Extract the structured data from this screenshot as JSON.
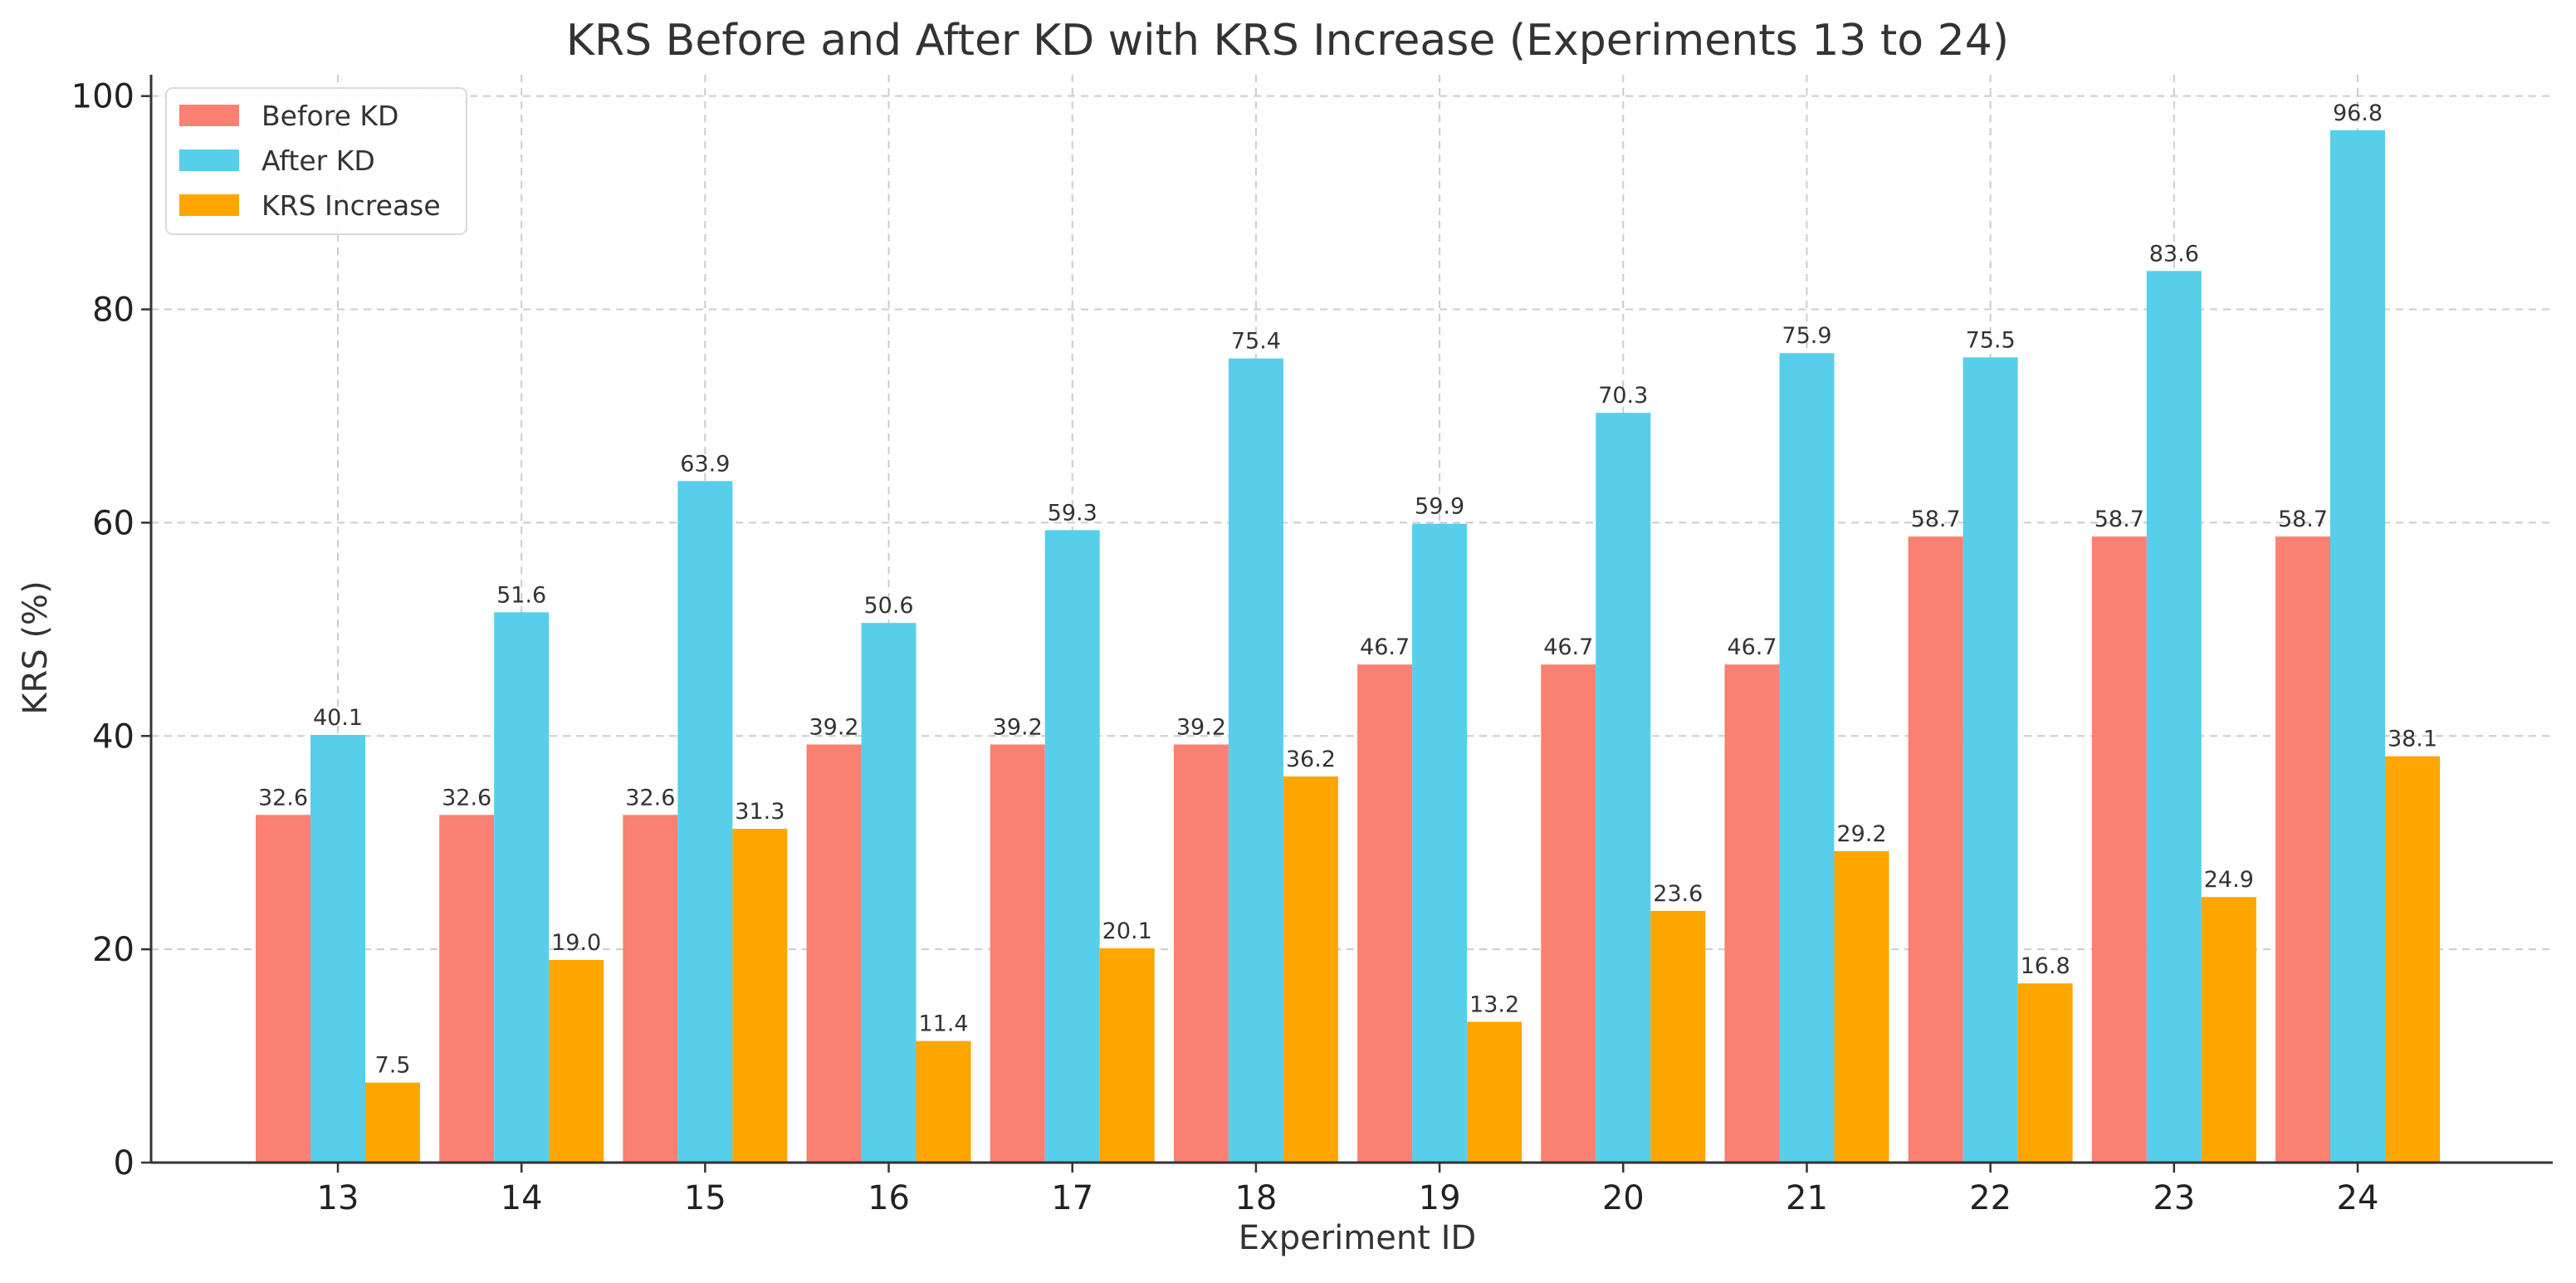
{
  "chart_data": {
    "type": "bar",
    "title": "KRS Before and After KD with KRS Increase (Experiments 13 to 24)",
    "xlabel": "Experiment ID",
    "ylabel": "KRS (%)",
    "categories": [
      "13",
      "14",
      "15",
      "16",
      "17",
      "18",
      "19",
      "20",
      "21",
      "22",
      "23",
      "24"
    ],
    "ylim": [
      0,
      102
    ],
    "yticks": [
      0,
      20,
      40,
      60,
      80,
      100
    ],
    "grid": true,
    "legend_position": "top-left",
    "series": [
      {
        "name": "Before KD",
        "color": "#fa8072",
        "values": [
          32.6,
          32.6,
          32.6,
          39.2,
          39.2,
          39.2,
          46.7,
          46.7,
          46.7,
          58.7,
          58.7,
          58.7
        ],
        "labels": [
          "32.6",
          "32.6",
          "32.6",
          "39.2",
          "39.2",
          "39.2",
          "46.7",
          "46.7",
          "46.7",
          "58.7",
          "58.7",
          "58.7"
        ]
      },
      {
        "name": "After KD",
        "color": "#57cfea",
        "values": [
          40.1,
          51.6,
          63.9,
          50.6,
          59.3,
          75.4,
          59.9,
          70.3,
          75.9,
          75.5,
          83.6,
          96.8
        ],
        "labels": [
          "40.1",
          "51.6",
          "63.9",
          "50.6",
          "59.3",
          "75.4",
          "59.9",
          "70.3",
          "75.9",
          "75.5",
          "83.6",
          "96.8"
        ]
      },
      {
        "name": "KRS Increase",
        "color": "#ffa500",
        "values": [
          7.5,
          19.0,
          31.3,
          11.4,
          20.1,
          36.2,
          13.2,
          23.6,
          29.2,
          16.8,
          24.9,
          38.1
        ],
        "labels": [
          "7.5",
          "19.0",
          "31.3",
          "11.4",
          "20.1",
          "36.2",
          "13.2",
          "23.6",
          "29.2",
          "16.8",
          "24.9",
          "38.1"
        ]
      }
    ]
  }
}
